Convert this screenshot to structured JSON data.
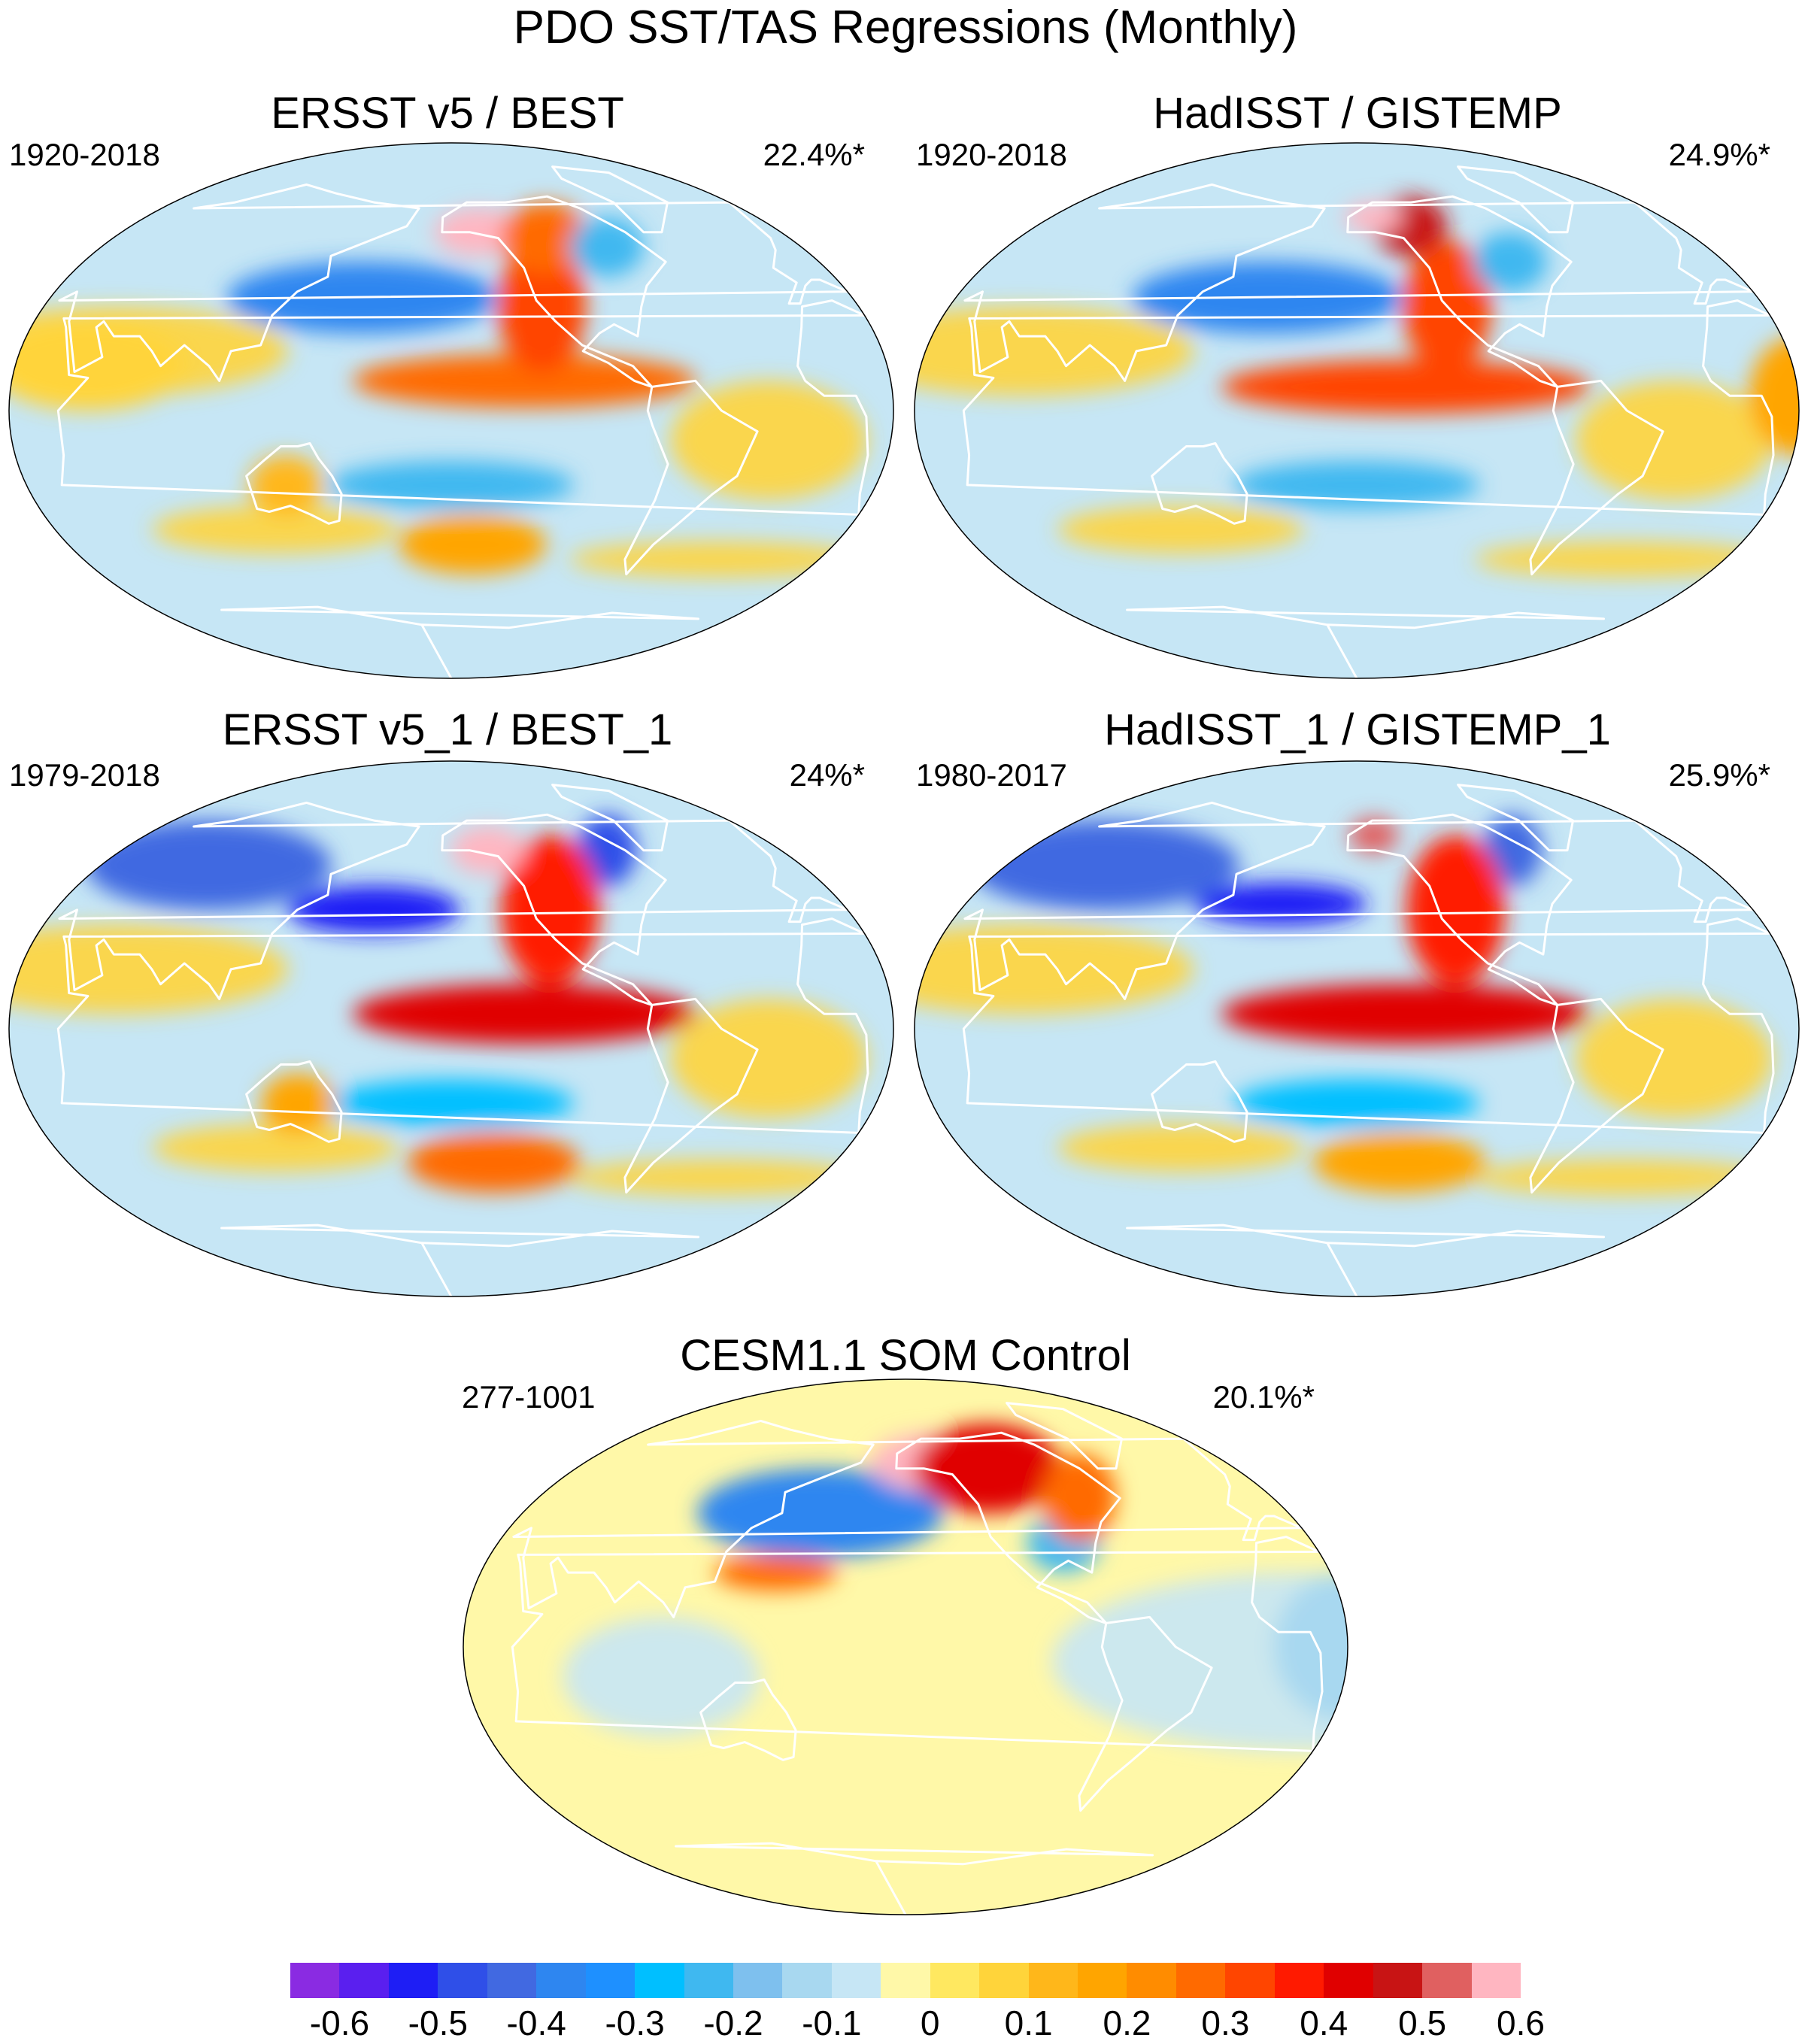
{
  "title": "PDO SST/TAS Regressions (Monthly)",
  "panels": [
    {
      "title": "ERSST v5 / BEST",
      "period": "1920-2018",
      "variance": "22.4%*",
      "blobs": [
        {
          "lon": 165,
          "lat": 42,
          "rx": 38,
          "ry": 7,
          "v": -0.6
        },
        {
          "lon": 160,
          "lat": 38,
          "rx": 55,
          "ry": 12,
          "v": -0.35
        },
        {
          "lon": -130,
          "lat": 10,
          "rx": 70,
          "ry": 9,
          "v": 0.3
        },
        {
          "lon": -120,
          "lat": 35,
          "rx": 18,
          "ry": 22,
          "v": 0.35
        },
        {
          "lon": -145,
          "lat": 60,
          "rx": 18,
          "ry": 8,
          "v": 0.6
        },
        {
          "lon": -110,
          "lat": 58,
          "rx": 18,
          "ry": 12,
          "v": 0.3
        },
        {
          "lon": -160,
          "lat": -25,
          "rx": 50,
          "ry": 8,
          "v": -0.2
        },
        {
          "lon": -150,
          "lat": -45,
          "rx": 30,
          "ry": 10,
          "v": 0.2
        },
        {
          "lon": 130,
          "lat": -25,
          "rx": 15,
          "ry": 10,
          "v": 0.15
        },
        {
          "lon": 50,
          "lat": 15,
          "rx": 40,
          "ry": 15,
          "v": 0.1
        },
        {
          "lon": -80,
          "lat": 55,
          "rx": 15,
          "ry": 10,
          "v": -0.2
        }
      ]
    },
    {
      "title": "HadISST / GISTEMP",
      "period": "1920-2018",
      "variance": "24.9%*",
      "blobs": [
        {
          "lon": 165,
          "lat": 42,
          "rx": 35,
          "ry": 7,
          "v": -0.55
        },
        {
          "lon": 160,
          "lat": 38,
          "rx": 55,
          "ry": 12,
          "v": -0.35
        },
        {
          "lon": -140,
          "lat": 8,
          "rx": 75,
          "ry": 9,
          "v": 0.35
        },
        {
          "lon": -120,
          "lat": 35,
          "rx": 18,
          "ry": 22,
          "v": 0.35
        },
        {
          "lon": -130,
          "lat": 62,
          "rx": 15,
          "ry": 10,
          "v": 0.5
        },
        {
          "lon": -150,
          "lat": 65,
          "rx": 12,
          "ry": 5,
          "v": 0.6
        },
        {
          "lon": -160,
          "lat": -25,
          "rx": 50,
          "ry": 8,
          "v": -0.2
        },
        {
          "lon": 20,
          "lat": 5,
          "rx": 20,
          "ry": 20,
          "v": 0.2
        },
        {
          "lon": -85,
          "lat": 50,
          "rx": 15,
          "ry": 10,
          "v": -0.2
        }
      ]
    },
    {
      "title": "ERSST v5_1 / BEST_1",
      "period": "1979-2018",
      "variance": "24%*",
      "blobs": [
        {
          "lon": 165,
          "lat": 40,
          "rx": 35,
          "ry": 8,
          "v": -0.5
        },
        {
          "lon": 75,
          "lat": 55,
          "rx": 50,
          "ry": 15,
          "v": -0.4
        },
        {
          "lon": -75,
          "lat": 60,
          "rx": 12,
          "ry": 12,
          "v": -0.45
        },
        {
          "lon": -130,
          "lat": 5,
          "rx": 70,
          "ry": 10,
          "v": 0.45
        },
        {
          "lon": -115,
          "lat": 40,
          "rx": 20,
          "ry": 25,
          "v": 0.4
        },
        {
          "lon": -140,
          "lat": 60,
          "rx": 15,
          "ry": 8,
          "v": 0.6
        },
        {
          "lon": -160,
          "lat": -25,
          "rx": 50,
          "ry": 8,
          "v": -0.25
        },
        {
          "lon": -140,
          "lat": -45,
          "rx": 35,
          "ry": 10,
          "v": 0.3
        },
        {
          "lon": 135,
          "lat": -25,
          "rx": 15,
          "ry": 10,
          "v": 0.2
        }
      ]
    },
    {
      "title": "HadISST_1 / GISTEMP_1",
      "period": "1980-2017",
      "variance": "25.9%*",
      "blobs": [
        {
          "lon": 165,
          "lat": 42,
          "rx": 35,
          "ry": 7,
          "v": -0.5
        },
        {
          "lon": 70,
          "lat": 55,
          "rx": 55,
          "ry": 15,
          "v": -0.4
        },
        {
          "lon": -75,
          "lat": 60,
          "rx": 12,
          "ry": 12,
          "v": -0.4
        },
        {
          "lon": -140,
          "lat": 5,
          "rx": 75,
          "ry": 10,
          "v": 0.45
        },
        {
          "lon": -115,
          "lat": 40,
          "rx": 20,
          "ry": 25,
          "v": 0.4
        },
        {
          "lon": -150,
          "lat": 65,
          "rx": 10,
          "ry": 6,
          "v": 0.55
        },
        {
          "lon": -160,
          "lat": -25,
          "rx": 50,
          "ry": 8,
          "v": -0.25
        },
        {
          "lon": -140,
          "lat": -45,
          "rx": 35,
          "ry": 10,
          "v": 0.2
        }
      ]
    },
    {
      "title": "CESM1.1 SOM Control",
      "period": "277-1001",
      "variance": "20.1%*",
      "blobs": [
        {
          "lon": 170,
          "lat": 45,
          "rx": 30,
          "ry": 9,
          "v": -0.6
        },
        {
          "lon": 160,
          "lat": 45,
          "rx": 50,
          "ry": 15,
          "v": -0.35
        },
        {
          "lon": -145,
          "lat": 62,
          "rx": 25,
          "ry": 10,
          "v": 0.6
        },
        {
          "lon": -115,
          "lat": 60,
          "rx": 30,
          "ry": 15,
          "v": 0.45
        },
        {
          "lon": -90,
          "lat": 35,
          "rx": 15,
          "ry": 10,
          "v": -0.2
        },
        {
          "lon": 145,
          "lat": 25,
          "rx": 25,
          "ry": 6,
          "v": 0.3
        },
        {
          "lon": -75,
          "lat": 50,
          "rx": 15,
          "ry": 15,
          "v": 0.3
        },
        {
          "lon": 20,
          "lat": 0,
          "rx": 30,
          "ry": 25,
          "v": -0.1
        }
      ]
    }
  ],
  "colorbar": {
    "colors": [
      "#8a2be2",
      "#5a1fef",
      "#1e1ef5",
      "#2f4fe8",
      "#4169e1",
      "#2e86f0",
      "#1e90ff",
      "#00bfff",
      "#3fb8f0",
      "#7ec0ee",
      "#a8d8f0",
      "#c6e6f5",
      "#fff8a8",
      "#ffe860",
      "#ffd43a",
      "#ffb71a",
      "#ffa500",
      "#ff8c00",
      "#ff6a00",
      "#ff4500",
      "#ff1a00",
      "#e00000",
      "#c81414",
      "#e06060",
      "#ffb6c1"
    ],
    "tick_labels": [
      "-0.6",
      "-0.5",
      "-0.4",
      "-0.3",
      "-0.2",
      "-0.1",
      "0",
      "0.1",
      "0.2",
      "0.3",
      "0.4",
      "0.5",
      "0.6"
    ]
  }
}
